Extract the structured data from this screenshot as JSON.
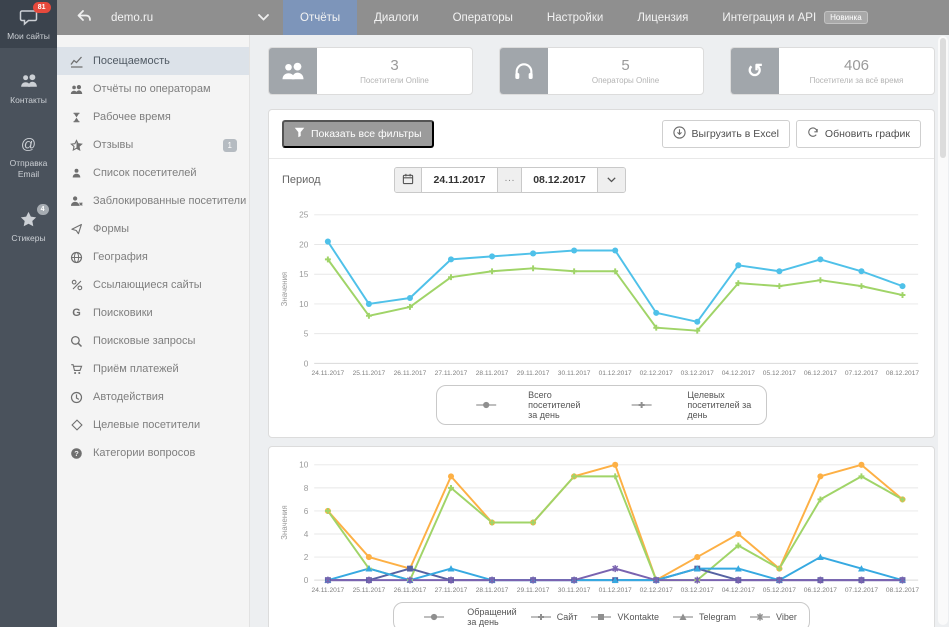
{
  "sidebar": {
    "items": [
      {
        "label": "Мои сайты",
        "icon": "chat-icon",
        "badge": "81",
        "active": true
      },
      {
        "label": "Контакты",
        "icon": "users-icon"
      },
      {
        "label": "Отправка Email",
        "icon": "at-icon"
      },
      {
        "label": "Стикеры",
        "icon": "star-icon",
        "badge": "4"
      }
    ]
  },
  "topnav": {
    "site": "demo.ru",
    "tabs": [
      {
        "label": "Отчёты",
        "active": true
      },
      {
        "label": "Диалоги"
      },
      {
        "label": "Операторы"
      },
      {
        "label": "Настройки"
      },
      {
        "label": "Лицензия"
      },
      {
        "label": "Интеграция и API",
        "badge": "Новинка"
      }
    ]
  },
  "menu": {
    "items": [
      {
        "label": "Посещаемость",
        "icon": "line-chart-icon",
        "active": true
      },
      {
        "label": "Отчёты по операторам",
        "icon": "operators-icon"
      },
      {
        "label": "Рабочее время",
        "icon": "hourglass-icon"
      },
      {
        "label": "Отзывы",
        "icon": "star-half-icon",
        "badge": "1"
      },
      {
        "label": "Список посетителей",
        "icon": "user-icon"
      },
      {
        "label": "Заблокированные посетители",
        "icon": "user-blocked-icon"
      },
      {
        "label": "Формы",
        "icon": "paper-plane-icon"
      },
      {
        "label": "География",
        "icon": "globe-icon"
      },
      {
        "label": "Ссылающиеся сайты",
        "icon": "link-icon"
      },
      {
        "label": "Поисковики",
        "icon": "google-icon"
      },
      {
        "label": "Поисковые запросы",
        "icon": "search-icon"
      },
      {
        "label": "Приём платежей",
        "icon": "cart-icon"
      },
      {
        "label": "Автодействия",
        "icon": "clock-icon"
      },
      {
        "label": "Целевые посетители",
        "icon": "target-icon"
      },
      {
        "label": "Категории вопросов",
        "icon": "question-icon"
      }
    ]
  },
  "stats": [
    {
      "value": "3",
      "label": "Посетители Online",
      "icon": "visitors-icon"
    },
    {
      "value": "5",
      "label": "Операторы Online",
      "icon": "headset-icon"
    },
    {
      "value": "406",
      "label": "Посетители за всё время",
      "icon": "history-icon"
    }
  ],
  "toolbar": {
    "show_filters": "Показать все фильтры",
    "export_excel": "Выгрузить в Excel",
    "refresh_chart": "Обновить график"
  },
  "period": {
    "label": "Период",
    "date_from": "24.11.2017",
    "date_to": "08.12.2017",
    "separator": "···"
  },
  "colors": {
    "active_tab": "#7d95ba",
    "badge_red": "#e6493c",
    "rail_bg": "#4a525c",
    "nav_bg": "#8f8f8f",
    "active_menu_bg": "#dce2e9"
  },
  "chart_data": [
    {
      "type": "line",
      "ylabel": "Значения",
      "ylim": [
        0,
        25
      ],
      "yticks": [
        0,
        5,
        10,
        15,
        20,
        25
      ],
      "grid": true,
      "legend_position": "bottom",
      "categories": [
        "24.11.2017",
        "25.11.2017",
        "26.11.2017",
        "27.11.2017",
        "28.11.2017",
        "29.11.2017",
        "30.11.2017",
        "01.12.2017",
        "02.12.2017",
        "03.12.2017",
        "04.12.2017",
        "05.12.2017",
        "06.12.2017",
        "07.12.2017",
        "08.12.2017"
      ],
      "series": [
        {
          "name": "Всего посетителей за день",
          "color": "#4fc1e9",
          "marker": "circle",
          "values": [
            20.5,
            10,
            11,
            17.5,
            18,
            18.5,
            19,
            19,
            8.5,
            7,
            16.5,
            15.5,
            17.5,
            15.5,
            13
          ]
        },
        {
          "name": "Целевых посетителей за день",
          "color": "#a0d468",
          "marker": "plus",
          "values": [
            17.5,
            8,
            9.5,
            14.5,
            15.5,
            16,
            15.5,
            15.5,
            6,
            5.5,
            13.5,
            13,
            14,
            13,
            11.5
          ]
        }
      ]
    },
    {
      "type": "line",
      "ylabel": "Значения",
      "ylim": [
        0,
        10
      ],
      "yticks": [
        0,
        2,
        4,
        6,
        8,
        10
      ],
      "grid": true,
      "legend_position": "bottom",
      "categories": [
        "24.11.2017",
        "25.11.2017",
        "26.11.2017",
        "27.11.2017",
        "28.11.2017",
        "29.11.2017",
        "30.11.2017",
        "01.12.2017",
        "02.12.2017",
        "03.12.2017",
        "04.12.2017",
        "05.12.2017",
        "06.12.2017",
        "07.12.2017",
        "08.12.2017"
      ],
      "series": [
        {
          "name": "Обращений за день",
          "color": "#fdb045",
          "marker": "circle",
          "values": [
            6,
            2,
            1,
            9,
            5,
            5,
            9,
            10,
            0,
            2,
            4,
            1,
            9,
            10,
            7
          ]
        },
        {
          "name": "Сайт",
          "color": "#a0d468",
          "marker": "plus",
          "values": [
            6,
            1,
            0,
            8,
            5,
            5,
            9,
            9,
            0,
            0,
            3,
            1,
            7,
            9,
            7
          ]
        },
        {
          "name": "VKontakte",
          "color": "#5562a2",
          "marker": "square",
          "values": [
            0,
            0,
            1,
            0,
            0,
            0,
            0,
            0,
            0,
            1,
            0,
            0,
            0,
            0,
            0
          ]
        },
        {
          "name": "Telegram",
          "color": "#36a9e1",
          "marker": "triangle",
          "values": [
            0,
            1,
            0,
            1,
            0,
            0,
            0,
            0,
            0,
            1,
            1,
            0,
            2,
            1,
            0
          ]
        },
        {
          "name": "Viber",
          "color": "#7a63b0",
          "marker": "star",
          "values": [
            0,
            0,
            0,
            0,
            0,
            0,
            0,
            1,
            0,
            0,
            0,
            0,
            0,
            0,
            0
          ]
        }
      ]
    }
  ]
}
